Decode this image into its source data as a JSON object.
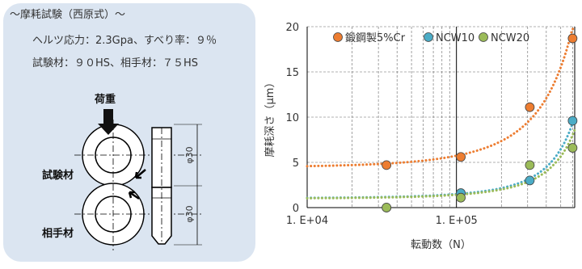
{
  "panel": {
    "title": "～摩耗試験（西原式）～",
    "lines": [
      "ヘルツ応力：2.3Gpa、すべり率：９％",
      "試験材：９０HS、相手材：７５HS"
    ],
    "load": "荷重",
    "test": "試験材",
    "partner": "相手材",
    "dims": [
      "φ30",
      "φ30"
    ]
  },
  "chart_data": {
    "type": "scatter",
    "x_label": "転動数（N）",
    "y_label": "摩耗深さ（μm）",
    "log_x": true,
    "grid": true,
    "xlim": [
      10000,
      620000
    ],
    "ylim": [
      0,
      20
    ],
    "xticks": [
      {
        "value": 10000,
        "label": "1. E+04"
      },
      {
        "value": 100000,
        "label": "1. E+05"
      }
    ],
    "xgrid_minor": [
      20000,
      30000,
      40000,
      50000,
      60000,
      70000,
      80000,
      90000,
      200000,
      300000,
      400000,
      500000,
      600000
    ],
    "yticks": [
      0,
      5,
      10,
      15,
      20
    ],
    "legend": "top",
    "trendline": "exponential",
    "series": [
      {
        "name": "鍛鋼製5%Cr",
        "color": "#ed7d31",
        "x": [
          34000,
          107000,
          310000,
          600000
        ],
        "values": [
          4.7,
          5.6,
          11.1,
          18.7
        ]
      },
      {
        "name": "NCW10",
        "color": "#4bacc6",
        "x": [
          34000,
          107000,
          310000,
          600000
        ],
        "values": [
          0,
          1.6,
          3.0,
          9.6
        ]
      },
      {
        "name": "NCW20",
        "color": "#9bbb59",
        "x": [
          34000,
          107000,
          310000,
          600000
        ],
        "values": [
          0,
          1.1,
          4.7,
          6.6
        ]
      }
    ]
  }
}
